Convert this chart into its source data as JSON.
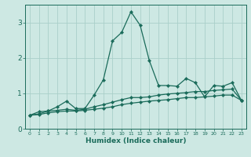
{
  "xlabel": "Humidex (Indice chaleur)",
  "x": [
    0,
    1,
    2,
    3,
    4,
    5,
    6,
    7,
    8,
    9,
    10,
    11,
    12,
    13,
    14,
    15,
    16,
    17,
    18,
    19,
    20,
    21,
    22,
    23
  ],
  "line1": [
    0.38,
    0.48,
    0.5,
    0.62,
    0.78,
    0.57,
    0.57,
    0.95,
    1.38,
    2.48,
    2.72,
    3.3,
    2.92,
    1.92,
    1.22,
    1.22,
    1.2,
    1.42,
    1.3,
    0.9,
    1.22,
    1.2,
    1.3,
    0.8
  ],
  "line2": [
    0.38,
    0.42,
    0.5,
    0.52,
    0.55,
    0.52,
    0.55,
    0.62,
    0.68,
    0.75,
    0.82,
    0.88,
    0.88,
    0.9,
    0.95,
    0.98,
    1.0,
    1.02,
    1.05,
    1.05,
    1.08,
    1.1,
    1.12,
    0.8
  ],
  "line3": [
    0.38,
    0.4,
    0.45,
    0.48,
    0.5,
    0.5,
    0.52,
    0.55,
    0.58,
    0.62,
    0.68,
    0.72,
    0.75,
    0.78,
    0.8,
    0.82,
    0.85,
    0.88,
    0.88,
    0.9,
    0.92,
    0.95,
    0.95,
    0.8
  ],
  "line_color": "#1a6b5a",
  "bg_color": "#cde8e3",
  "grid_color": "#aacfc9",
  "ylim": [
    0,
    3.5
  ],
  "yticks": [
    0,
    1,
    2,
    3
  ],
  "xtick_fontsize": 4.5,
  "ytick_fontsize": 6.5,
  "xlabel_fontsize": 6.5,
  "marker": "D",
  "marker_size": 2.2,
  "linewidth": 0.9
}
